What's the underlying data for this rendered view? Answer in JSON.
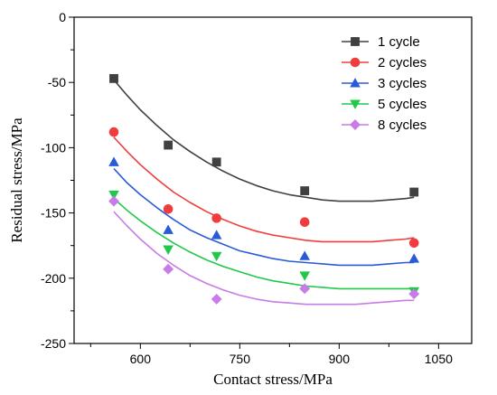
{
  "chart_data": {
    "type": "scatter",
    "xlabel": "Contact stress/MPa",
    "ylabel": "Residual stress/MPa",
    "xlim": [
      500,
      1100
    ],
    "ylim": [
      -250,
      0
    ],
    "x_ticks": [
      600,
      750,
      900,
      1050
    ],
    "y_ticks": [
      0,
      -50,
      -100,
      -150,
      -200,
      -250
    ],
    "legend_position": "top-right",
    "grid": false,
    "series": [
      {
        "name": "1 cycle",
        "color": "#404040",
        "marker": "square",
        "x": [
          560,
          642,
          715,
          848,
          1013
        ],
        "y": [
          -47,
          -98,
          -111,
          -133,
          -134
        ],
        "fit_x": [
          560,
          580,
          600,
          625,
          650,
          675,
          700,
          725,
          750,
          775,
          800,
          825,
          850,
          875,
          900,
          925,
          950,
          975,
          1000,
          1013
        ],
        "fit_y": [
          -48,
          -60,
          -71,
          -83,
          -94,
          -103,
          -111,
          -118,
          -124,
          -129,
          -133,
          -136,
          -138,
          -140,
          -141,
          -141,
          -141,
          -140,
          -139,
          -138
        ]
      },
      {
        "name": "2 cycles",
        "color": "#f03c3c",
        "marker": "circle",
        "x": [
          560,
          642,
          715,
          848,
          1013
        ],
        "y": [
          -88,
          -147,
          -154,
          -157,
          -173
        ],
        "fit_x": [
          560,
          580,
          600,
          625,
          650,
          675,
          700,
          725,
          750,
          775,
          800,
          825,
          850,
          875,
          900,
          925,
          950,
          975,
          1000,
          1013
        ],
        "fit_y": [
          -92,
          -103,
          -113,
          -124,
          -134,
          -142,
          -149,
          -155,
          -160,
          -164,
          -167,
          -169,
          -171,
          -172,
          -172,
          -172,
          -172,
          -171,
          -170,
          -169
        ]
      },
      {
        "name": "3 cycles",
        "color": "#2a5bd7",
        "marker": "triangle-up",
        "x": [
          560,
          642,
          715,
          848,
          1013
        ],
        "y": [
          -111,
          -163,
          -167,
          -183,
          -185
        ],
        "fit_x": [
          560,
          580,
          600,
          625,
          650,
          675,
          700,
          725,
          750,
          775,
          800,
          825,
          850,
          875,
          900,
          925,
          950,
          975,
          1000,
          1013
        ],
        "fit_y": [
          -116,
          -127,
          -136,
          -146,
          -155,
          -163,
          -169,
          -174,
          -179,
          -182,
          -185,
          -187,
          -188,
          -189,
          -190,
          -190,
          -190,
          -189,
          -188,
          -188
        ]
      },
      {
        "name": "5 cycles",
        "color": "#22c84a",
        "marker": "triangle-down",
        "x": [
          560,
          642,
          715,
          848,
          1013
        ],
        "y": [
          -136,
          -178,
          -183,
          -198,
          -210
        ],
        "fit_x": [
          560,
          580,
          600,
          625,
          650,
          675,
          700,
          725,
          750,
          775,
          800,
          825,
          850,
          875,
          900,
          925,
          950,
          975,
          1000,
          1013
        ],
        "fit_y": [
          -139,
          -148,
          -156,
          -165,
          -173,
          -180,
          -186,
          -191,
          -195,
          -199,
          -202,
          -204,
          -206,
          -207,
          -208,
          -208,
          -208,
          -208,
          -208,
          -208
        ]
      },
      {
        "name": "8 cycles",
        "color": "#c77ce8",
        "marker": "diamond",
        "x": [
          560,
          642,
          715,
          848,
          1013
        ],
        "y": [
          -141,
          -193,
          -216,
          -208,
          -212
        ],
        "fit_x": [
          560,
          580,
          600,
          625,
          650,
          675,
          700,
          725,
          750,
          775,
          800,
          825,
          850,
          875,
          900,
          925,
          950,
          975,
          1000,
          1013
        ],
        "fit_y": [
          -149,
          -160,
          -170,
          -181,
          -190,
          -198,
          -204,
          -209,
          -213,
          -216,
          -218,
          -219,
          -220,
          -220,
          -220,
          -220,
          -219,
          -218,
          -217,
          -217
        ]
      }
    ]
  }
}
